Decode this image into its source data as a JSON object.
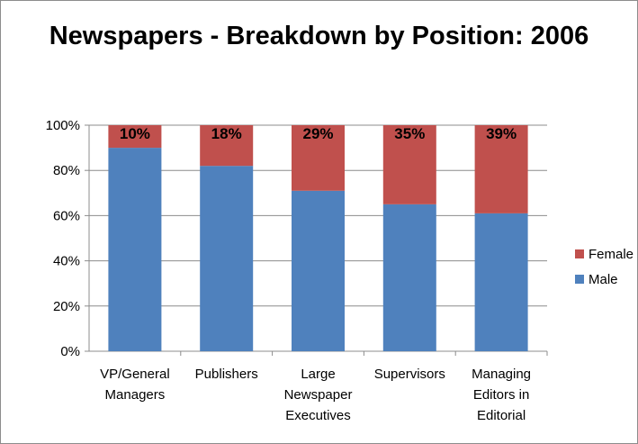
{
  "chart_data": {
    "type": "bar",
    "stacked": true,
    "title": "Newspapers - Breakdown by Position: 2006",
    "categories": [
      [
        "VP/General",
        "Managers"
      ],
      [
        "Publishers"
      ],
      [
        "Large",
        "Newspaper",
        "Executives"
      ],
      [
        "Supervisors"
      ],
      [
        "Managing",
        "Editors in",
        "Editorial"
      ]
    ],
    "series": [
      {
        "name": "Male",
        "color": "#4f81bd",
        "values": [
          90,
          82,
          71,
          65,
          61
        ]
      },
      {
        "name": "Female",
        "color": "#c0504d",
        "values": [
          10,
          18,
          29,
          35,
          39
        ]
      }
    ],
    "data_labels": [
      "10%",
      "18%",
      "29%",
      "35%",
      "39%"
    ],
    "ylim": [
      0,
      100
    ],
    "yticks": [
      "0%",
      "20%",
      "40%",
      "60%",
      "80%",
      "100%"
    ],
    "grid": true,
    "legend_placement": "right",
    "legend": [
      {
        "name": "Female",
        "color": "#c0504d"
      },
      {
        "name": "Male",
        "color": "#4f81bd"
      }
    ]
  }
}
